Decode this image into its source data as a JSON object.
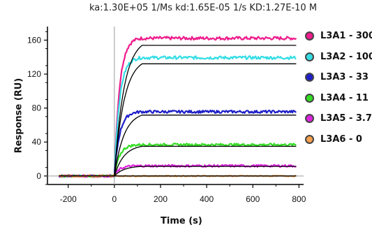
{
  "chart_data": {
    "type": "line",
    "title": "ka:1.30E+05 1/Ms  kd:1.65E-05 1/s  KD:1.27E-10 M",
    "xlabel": "Time (s)",
    "ylabel": "Response (RU)",
    "xlim": [
      -290,
      820
    ],
    "ylim": [
      -10,
      176
    ],
    "xticks": [
      -200,
      0,
      200,
      400,
      600,
      800
    ],
    "yticks": [
      0,
      40,
      80,
      120,
      160
    ],
    "grid": false,
    "legend_position": "right",
    "series": [
      {
        "name": "L3A1 - 300",
        "color": "#ee1c8c",
        "plateau": 163
      },
      {
        "name": "L3A2 - 100",
        "color": "#33dde6",
        "plateau": 140
      },
      {
        "name": "L3A3 - 33",
        "color": "#1e1ec8",
        "plateau": 76
      },
      {
        "name": "L3A4 - 11",
        "color": "#33dd22",
        "plateau": 37
      },
      {
        "name": "L3A5 - 3.7",
        "color": "#dd22dd",
        "plateau": 12
      },
      {
        "name": "L3A6 - 0",
        "color": "#f4a050",
        "plateau": 0
      }
    ],
    "fit_color": "#000000",
    "injection_time": 0,
    "association_end": 120
  }
}
